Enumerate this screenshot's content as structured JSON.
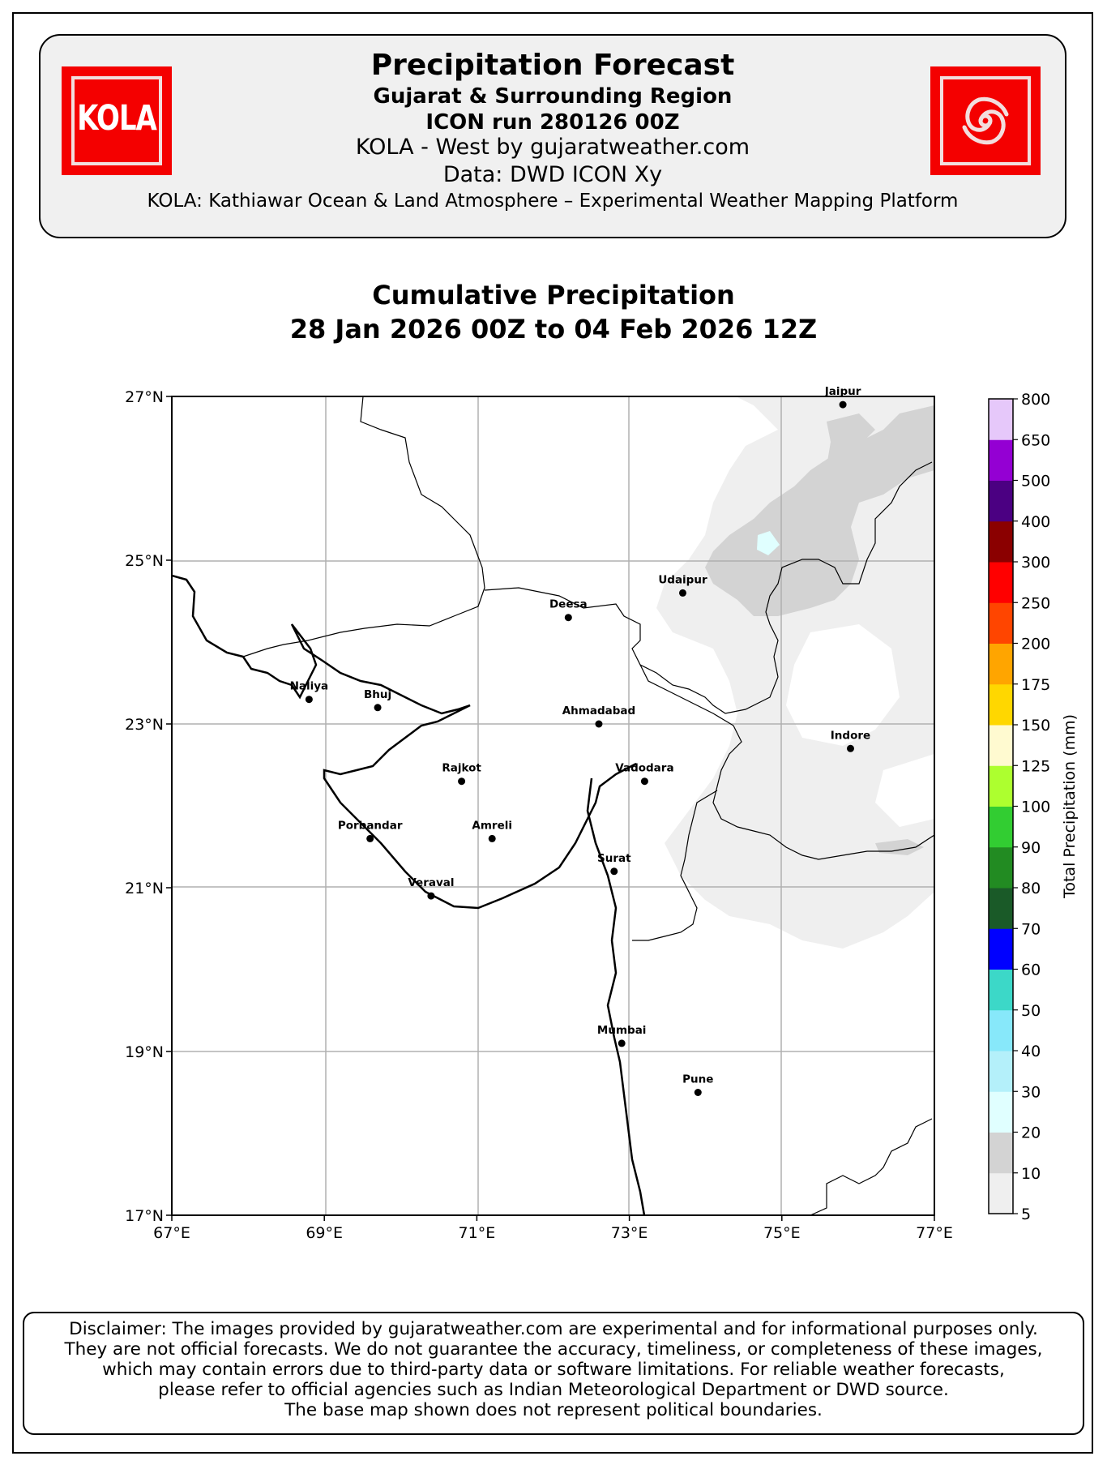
{
  "header": {
    "title": "Precipitation Forecast",
    "region": "Gujarat & Surrounding Region",
    "run": "ICON run 280126 00Z",
    "credit": "KOLA - West by gujaratweather.com",
    "data_source": "Data: DWD ICON Xy",
    "platform": "KOLA: Kathiawar Ocean & Land Atmosphere – Experimental Weather Mapping Platform",
    "logo_left_text": "KOLA",
    "logo_right_icon": "cyclone-icon",
    "logo_color": "#f40000"
  },
  "map": {
    "title_line1": "Cumulative Precipitation",
    "title_line2": "28 Jan 2026 00Z to 04 Feb 2026 12Z",
    "lon_ticks": [
      "67°E",
      "69°E",
      "71°E",
      "73°E",
      "75°E",
      "77°E"
    ],
    "lat_ticks": [
      "27°N",
      "25°N",
      "23°N",
      "21°N",
      "19°N",
      "17°N"
    ],
    "lon_range": [
      67,
      77
    ],
    "lat_range": [
      17,
      27
    ],
    "grid": true,
    "cities": [
      {
        "name": "Jaipur",
        "lon": 75.8,
        "lat": 26.9
      },
      {
        "name": "Udaipur",
        "lon": 73.7,
        "lat": 24.6
      },
      {
        "name": "Deesa",
        "lon": 72.2,
        "lat": 24.3
      },
      {
        "name": "Naliya",
        "lon": 68.8,
        "lat": 23.3
      },
      {
        "name": "Bhuj",
        "lon": 69.7,
        "lat": 23.2
      },
      {
        "name": "Ahmadabad",
        "lon": 72.6,
        "lat": 23.0
      },
      {
        "name": "Indore",
        "lon": 75.9,
        "lat": 22.7
      },
      {
        "name": "Rajkot",
        "lon": 70.8,
        "lat": 22.3
      },
      {
        "name": "Vadodara",
        "lon": 73.2,
        "lat": 22.3
      },
      {
        "name": "Porbandar",
        "lon": 69.6,
        "lat": 21.6
      },
      {
        "name": "Amreli",
        "lon": 71.2,
        "lat": 21.6
      },
      {
        "name": "Surat",
        "lon": 72.8,
        "lat": 21.2
      },
      {
        "name": "Veraval",
        "lon": 70.4,
        "lat": 20.9
      },
      {
        "name": "Mumbai",
        "lon": 72.9,
        "lat": 19.1
      },
      {
        "name": "Pune",
        "lon": 73.9,
        "lat": 18.5
      }
    ]
  },
  "colorbar": {
    "label": "Total Precipitation (mm)",
    "levels": [
      "5",
      "10",
      "20",
      "30",
      "40",
      "50",
      "60",
      "70",
      "80",
      "90",
      "100",
      "125",
      "150",
      "175",
      "200",
      "250",
      "300",
      "400",
      "500",
      "650",
      "800"
    ],
    "colors": [
      "#efefef",
      "#d3d3d3",
      "#e0ffff",
      "#b4f0fa",
      "#87e8fa",
      "#3cd8c8",
      "#0000ff",
      "#1a5a28",
      "#228b22",
      "#32cd32",
      "#adff2f",
      "#fffad0",
      "#ffd700",
      "#ffa500",
      "#ff4500",
      "#ff0000",
      "#8b0000",
      "#4b0082",
      "#9400d3",
      "#e6c8fa"
    ]
  },
  "disclaimer": [
    "Disclaimer: The images provided by gujaratweather.com are experimental and for informational purposes only.",
    "They are not official forecasts. We do not guarantee the accuracy, timeliness, or completeness of these images,",
    "which may contain errors due to third-party data or software limitations. For reliable weather forecasts,",
    "please refer to official agencies such as Indian Meteorological Department or DWD source.",
    "The base map shown does not represent political boundaries."
  ]
}
